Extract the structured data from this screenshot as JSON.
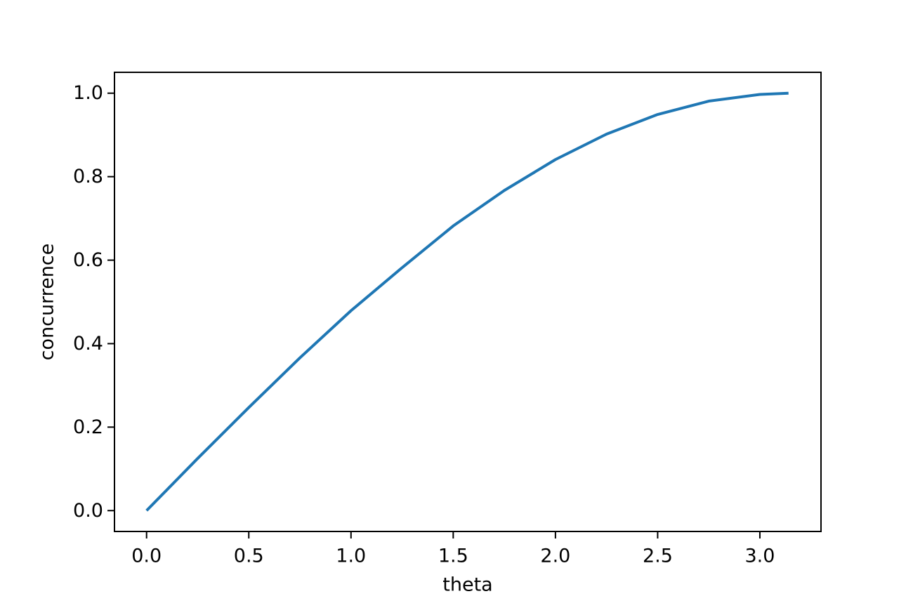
{
  "chart_data": {
    "type": "line",
    "x_label": "theta",
    "y_label": "concurrence",
    "x": [
      0,
      0.25,
      0.5,
      0.75,
      1.0,
      1.25,
      1.5,
      1.75,
      2.0,
      2.25,
      2.5,
      2.75,
      3.0,
      3.14
    ],
    "values": [
      0,
      0.125,
      0.247,
      0.366,
      0.479,
      0.582,
      0.682,
      0.767,
      0.841,
      0.902,
      0.949,
      0.981,
      0.997,
      1.0
    ],
    "color": "#1f77b4",
    "xlim": [
      -0.157,
      3.299
    ],
    "ylim": [
      -0.05,
      1.05
    ],
    "xticks": [
      {
        "value": 0,
        "label": "0.0"
      },
      0.5,
      {
        "value": 1,
        "label": "1.0"
      },
      1.5,
      {
        "value": 2,
        "label": "2.0"
      },
      2.5,
      {
        "value": 3,
        "label": "3.0"
      }
    ],
    "yticks": [
      {
        "value": 0,
        "label": "0.0"
      },
      0.2,
      0.4,
      0.6,
      0.8,
      {
        "value": 1,
        "label": "1.0"
      }
    ],
    "grid": false
  }
}
